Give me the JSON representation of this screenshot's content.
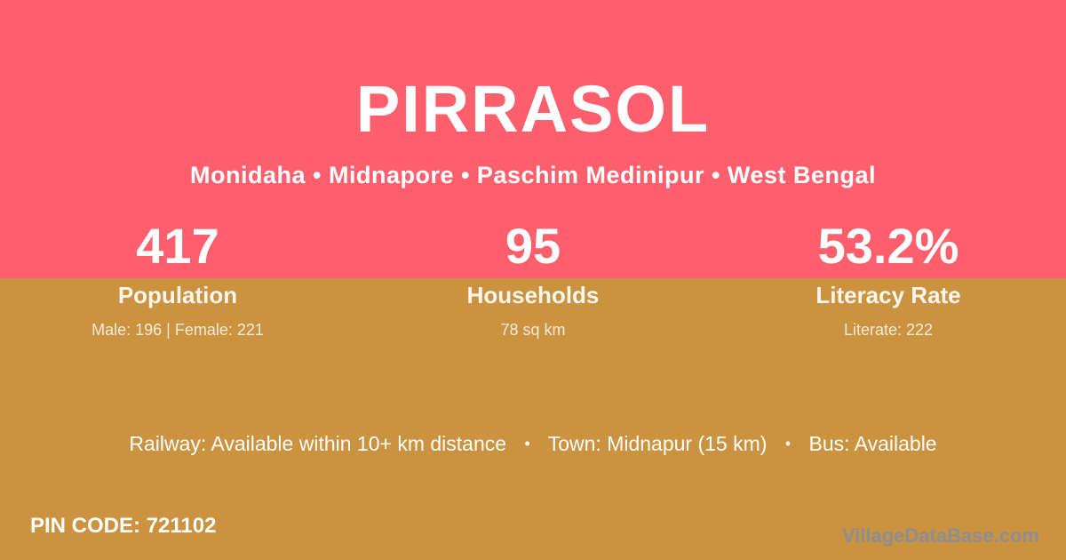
{
  "header": {
    "title": "PIRRASOL",
    "location": "Monidaha • Midnapore • Paschim Medinipur • West Bengal"
  },
  "stats": [
    {
      "value": "417",
      "label": "Population",
      "detail": "Male: 196 | Female: 221"
    },
    {
      "value": "95",
      "label": "Households",
      "detail": "78 sq km"
    },
    {
      "value": "53.2%",
      "label": "Literacy Rate",
      "detail": "Literate: 222"
    }
  ],
  "amenities": {
    "railway": "Railway: Available within 10+ km distance",
    "town": "Town: Midnapur (15 km)",
    "bus": "Bus: Available",
    "separator": "•"
  },
  "footer": {
    "pin_code": "PIN CODE: 721102",
    "watermark": "VillageDataBase.com"
  },
  "colors": {
    "header_pink": "#fd5f6d",
    "body_gold": "#cb923f",
    "text_white": "#ffffff",
    "watermark_gray": "#8a8e96"
  }
}
